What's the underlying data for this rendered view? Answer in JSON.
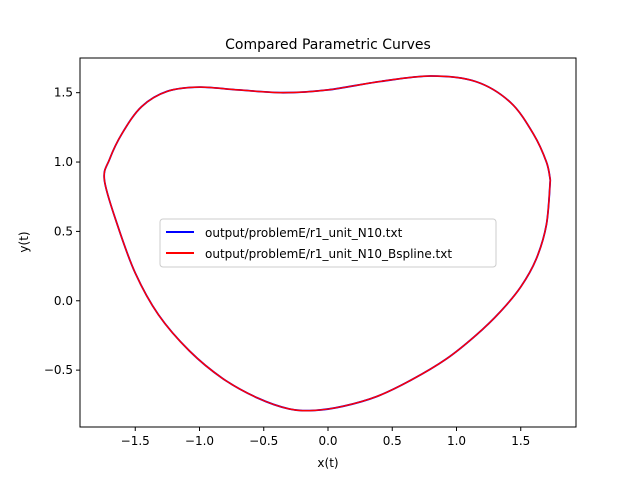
{
  "chart_data": {
    "type": "line",
    "title": "Compared Parametric Curves",
    "xlabel": "x(t)",
    "ylabel": "y(t)",
    "xlim": [
      -1.93,
      1.93
    ],
    "ylim": [
      -0.91,
      1.75
    ],
    "xticks": [
      -1.5,
      -1.0,
      -0.5,
      0.0,
      0.5,
      1.0,
      1.5
    ],
    "xtick_labels": [
      "−1.5",
      "−1.0",
      "−0.5",
      "0.0",
      "0.5",
      "1.0",
      "1.5"
    ],
    "yticks": [
      -0.5,
      0.0,
      0.5,
      1.0,
      1.5
    ],
    "ytick_labels": [
      "−0.5",
      "0.0",
      "0.5",
      "1.0",
      "1.5"
    ],
    "grid": false,
    "legend_position": "center",
    "series": [
      {
        "name": "output/problemE/r1_unit_N10.txt",
        "color": "#0000ff",
        "points": [
          [
            1.73,
            0.87
          ],
          [
            1.7,
            0.55
          ],
          [
            1.62,
            0.3
          ],
          [
            1.5,
            0.1
          ],
          [
            1.34,
            -0.08
          ],
          [
            1.15,
            -0.25
          ],
          [
            0.92,
            -0.42
          ],
          [
            0.65,
            -0.57
          ],
          [
            0.38,
            -0.69
          ],
          [
            0.12,
            -0.76
          ],
          [
            -0.1,
            -0.79
          ],
          [
            -0.3,
            -0.78
          ],
          [
            -0.55,
            -0.7
          ],
          [
            -0.82,
            -0.56
          ],
          [
            -1.08,
            -0.36
          ],
          [
            -1.32,
            -0.1
          ],
          [
            -1.5,
            0.2
          ],
          [
            -1.64,
            0.55
          ],
          [
            -1.74,
            0.87
          ],
          [
            -1.7,
            1.02
          ],
          [
            -1.6,
            1.21
          ],
          [
            -1.45,
            1.4
          ],
          [
            -1.25,
            1.51
          ],
          [
            -1.0,
            1.54
          ],
          [
            -0.7,
            1.52
          ],
          [
            -0.35,
            1.5
          ],
          [
            0.0,
            1.52
          ],
          [
            0.4,
            1.58
          ],
          [
            0.8,
            1.62
          ],
          [
            1.15,
            1.58
          ],
          [
            1.42,
            1.43
          ],
          [
            1.6,
            1.2
          ],
          [
            1.7,
            1.0
          ],
          [
            1.73,
            0.87
          ]
        ]
      },
      {
        "name": "output/problemE/r1_unit_N10_Bspline.txt",
        "color": "#ff0000",
        "points": [
          [
            1.73,
            0.87
          ],
          [
            1.7,
            0.55
          ],
          [
            1.62,
            0.3
          ],
          [
            1.5,
            0.1
          ],
          [
            1.34,
            -0.08
          ],
          [
            1.15,
            -0.25
          ],
          [
            0.92,
            -0.42
          ],
          [
            0.65,
            -0.57
          ],
          [
            0.38,
            -0.69
          ],
          [
            0.12,
            -0.76
          ],
          [
            -0.1,
            -0.79
          ],
          [
            -0.3,
            -0.78
          ],
          [
            -0.55,
            -0.7
          ],
          [
            -0.82,
            -0.56
          ],
          [
            -1.08,
            -0.36
          ],
          [
            -1.32,
            -0.1
          ],
          [
            -1.5,
            0.2
          ],
          [
            -1.64,
            0.55
          ],
          [
            -1.74,
            0.87
          ],
          [
            -1.7,
            1.02
          ],
          [
            -1.6,
            1.21
          ],
          [
            -1.45,
            1.4
          ],
          [
            -1.25,
            1.51
          ],
          [
            -1.0,
            1.54
          ],
          [
            -0.7,
            1.52
          ],
          [
            -0.35,
            1.5
          ],
          [
            0.0,
            1.52
          ],
          [
            0.4,
            1.58
          ],
          [
            0.8,
            1.62
          ],
          [
            1.15,
            1.58
          ],
          [
            1.42,
            1.43
          ],
          [
            1.6,
            1.2
          ],
          [
            1.7,
            1.0
          ],
          [
            1.73,
            0.87
          ]
        ]
      }
    ]
  }
}
